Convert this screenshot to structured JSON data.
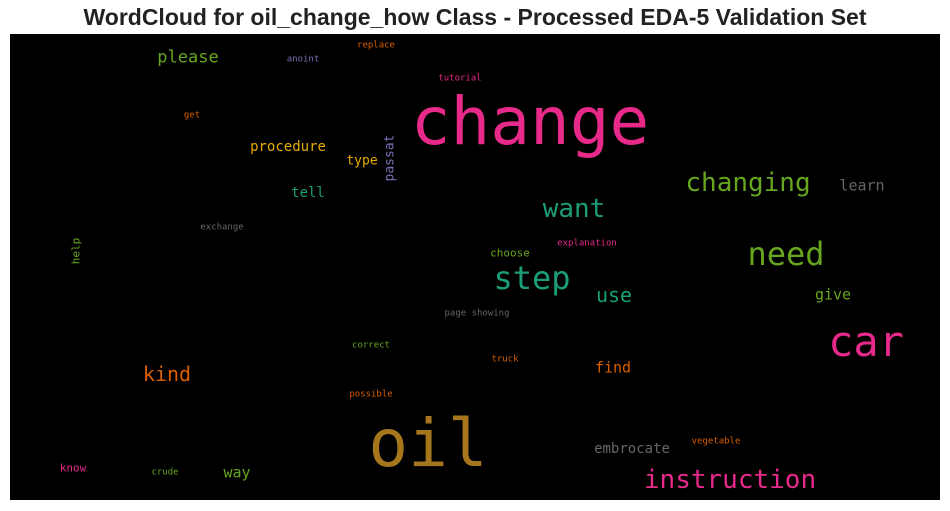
{
  "chart_data": {
    "type": "wordcloud",
    "title": "WordCloud for oil_change_how Class - Processed EDA-5 Validation Set",
    "words": [
      {
        "text": "change",
        "color": "#e7298a",
        "weight": 1.0,
        "vertical": false
      },
      {
        "text": "oil",
        "color": "#a6761d",
        "weight": 0.95,
        "vertical": false
      },
      {
        "text": "car",
        "color": "#e7298a",
        "weight": 0.7,
        "vertical": false
      },
      {
        "text": "need",
        "color": "#66a61e",
        "weight": 0.55,
        "vertical": false
      },
      {
        "text": "step",
        "color": "#1b9e77",
        "weight": 0.55,
        "vertical": false
      },
      {
        "text": "instruction",
        "color": "#e7298a",
        "weight": 0.45,
        "vertical": false
      },
      {
        "text": "changing",
        "color": "#66a61e",
        "weight": 0.45,
        "vertical": false
      },
      {
        "text": "want",
        "color": "#1b9e77",
        "weight": 0.42,
        "vertical": false
      },
      {
        "text": "kind",
        "color": "#d95f02",
        "weight": 0.33,
        "vertical": false
      },
      {
        "text": "use",
        "color": "#1b9e77",
        "weight": 0.33,
        "vertical": false
      },
      {
        "text": "please",
        "color": "#66a61e",
        "weight": 0.28,
        "vertical": false
      },
      {
        "text": "learn",
        "color": "#666666",
        "weight": 0.26,
        "vertical": false
      },
      {
        "text": "give",
        "color": "#66a61e",
        "weight": 0.26,
        "vertical": false
      },
      {
        "text": "find",
        "color": "#d95f02",
        "weight": 0.26,
        "vertical": false
      },
      {
        "text": "way",
        "color": "#66a61e",
        "weight": 0.26,
        "vertical": false
      },
      {
        "text": "embrocate",
        "color": "#666666",
        "weight": 0.24,
        "vertical": false
      },
      {
        "text": "procedure",
        "color": "#e6ab02",
        "weight": 0.22,
        "vertical": false
      },
      {
        "text": "tell",
        "color": "#1b9e77",
        "weight": 0.22,
        "vertical": false
      },
      {
        "text": "type",
        "color": "#e6ab02",
        "weight": 0.19,
        "vertical": false
      },
      {
        "text": "passat",
        "color": "#7570b3",
        "weight": 0.19,
        "vertical": true
      },
      {
        "text": "choose",
        "color": "#66a61e",
        "weight": 0.16,
        "vertical": false
      },
      {
        "text": "help",
        "color": "#66a61e",
        "weight": 0.16,
        "vertical": true
      },
      {
        "text": "know",
        "color": "#e7298a",
        "weight": 0.16,
        "vertical": false
      },
      {
        "text": "anoint",
        "color": "#7570b3",
        "weight": 0.12,
        "vertical": false
      },
      {
        "text": "replace",
        "color": "#d95f02",
        "weight": 0.12,
        "vertical": false
      },
      {
        "text": "tutorial",
        "color": "#e7298a",
        "weight": 0.12,
        "vertical": false
      },
      {
        "text": "get",
        "color": "#d95f02",
        "weight": 0.12,
        "vertical": false
      },
      {
        "text": "exchange",
        "color": "#666666",
        "weight": 0.12,
        "vertical": false
      },
      {
        "text": "explanation",
        "color": "#e7298a",
        "weight": 0.12,
        "vertical": false
      },
      {
        "text": "page showing",
        "color": "#666666",
        "weight": 0.12,
        "vertical": false
      },
      {
        "text": "correct",
        "color": "#66a61e",
        "weight": 0.12,
        "vertical": false
      },
      {
        "text": "truck",
        "color": "#d95f02",
        "weight": 0.12,
        "vertical": false
      },
      {
        "text": "possible",
        "color": "#d95f02",
        "weight": 0.12,
        "vertical": false
      },
      {
        "text": "vegetable",
        "color": "#d95f02",
        "weight": 0.12,
        "vertical": false
      },
      {
        "text": "crude",
        "color": "#66a61e",
        "weight": 0.12,
        "vertical": false
      }
    ]
  }
}
